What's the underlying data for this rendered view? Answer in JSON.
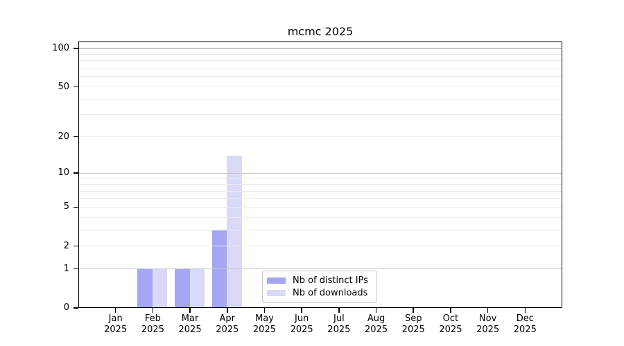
{
  "chart_data": {
    "type": "bar",
    "title": "mcmc 2025",
    "xlabel": "",
    "ylabel": "",
    "categories": [
      "Jan 2025",
      "Feb 2025",
      "Mar 2025",
      "Apr 2025",
      "May 2025",
      "Jun 2025",
      "Jul 2025",
      "Aug 2025",
      "Sep 2025",
      "Oct 2025",
      "Nov 2025",
      "Dec 2025"
    ],
    "series": [
      {
        "name": "Nb of distinct IPs",
        "color": "#a5a6f4",
        "values": [
          0,
          1,
          1,
          3,
          0,
          0,
          0,
          0,
          0,
          0,
          0,
          0
        ]
      },
      {
        "name": "Nb of downloads",
        "color": "#d9daf8",
        "values": [
          0,
          1,
          1,
          14,
          0,
          0,
          0,
          0,
          0,
          0,
          0,
          0
        ]
      }
    ],
    "yscale": "log1p",
    "yticks": [
      0,
      1,
      2,
      5,
      10,
      20,
      50,
      100
    ],
    "ylim": [
      0,
      113
    ],
    "gridlines": {
      "major": [
        1,
        10,
        100
      ],
      "minor": [
        2,
        3,
        4,
        5,
        6,
        7,
        8,
        9,
        20,
        30,
        40,
        50,
        60,
        70,
        80,
        90
      ]
    },
    "legend_position": "lower center",
    "grid_on": true,
    "colors": {
      "major_grid": "#c6c6c6",
      "minor_grid": "#ececec",
      "axis": "#000000",
      "background": "#ffffff"
    }
  }
}
